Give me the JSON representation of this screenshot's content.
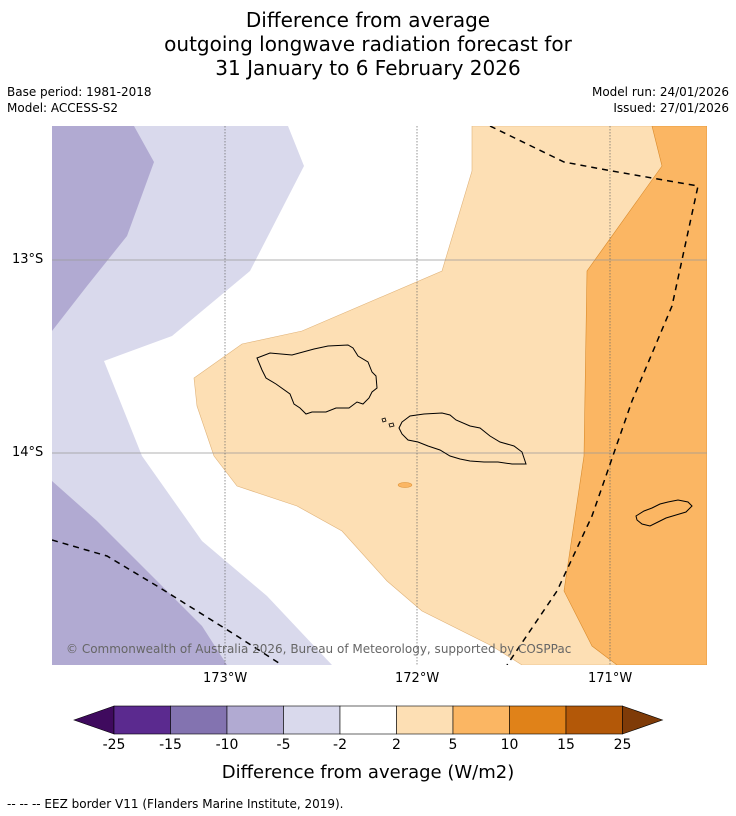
{
  "title": {
    "line1": "Difference from average",
    "line2": "outgoing longwave radiation forecast for",
    "line3": "31 January to 6 February 2026"
  },
  "meta": {
    "base_period": "Base period: 1981-2018",
    "model": "Model: ACCESS-S2",
    "model_run": "Model run: 24/01/2026",
    "issued": "Issued: 27/01/2026"
  },
  "map": {
    "lat_labels": [
      "13°S",
      "14°S"
    ],
    "lon_labels": [
      "173°W",
      "172°W",
      "171°W"
    ],
    "copyright": "© Commonwealth of Australia 2026, Bureau of Meteorology, supported by COSPPac"
  },
  "colorbar": {
    "ticks": [
      "-25",
      "-15",
      "-10",
      "-5",
      "-2",
      "2",
      "5",
      "10",
      "15",
      "25"
    ],
    "colors": [
      "#5b2a8f",
      "#8373b0",
      "#b1aad2",
      "#d9d9ec",
      "#ffffff",
      "#fddfb4",
      "#fbb663",
      "#e08219",
      "#b35808"
    ],
    "under_color": "#3f0a5e",
    "over_color": "#7f3b08",
    "title": "Difference from average (W/m2)"
  },
  "footer": "--  --  -- EEZ border V11 (Flanders Marine Institute, 2019)."
}
